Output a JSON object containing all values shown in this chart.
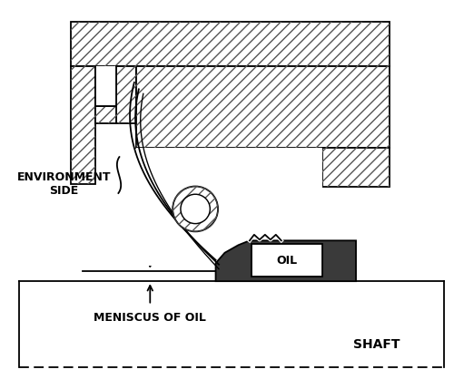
{
  "bg_color": "#ffffff",
  "line_color": "#000000",
  "hatch_color": "#555555",
  "dark_fill": "#3a3a3a",
  "text_environment": "ENVIRONMENT\nSIDE",
  "text_meniscus": "MENISCUS OF OIL",
  "text_shaft": "SHAFT",
  "text_oil": "OIL",
  "figsize": [
    5.0,
    4.18
  ],
  "dpi": 100
}
